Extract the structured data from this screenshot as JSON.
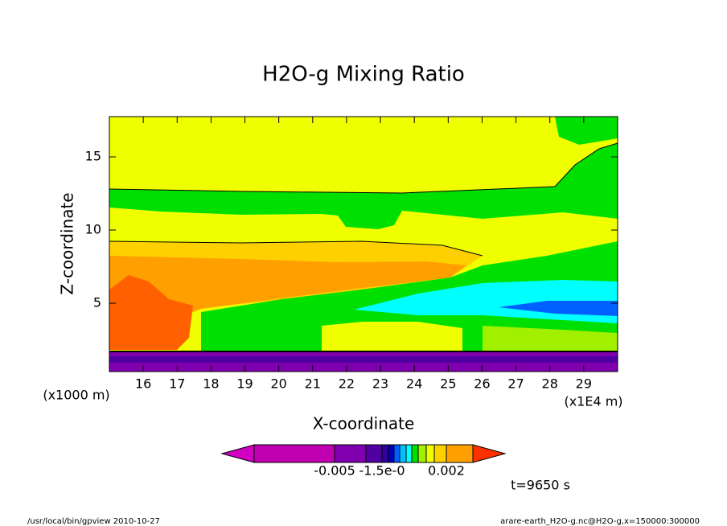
{
  "chart_data": {
    "type": "contour",
    "title": "H2O-g Mixing Ratio",
    "x_label": "X-coordinate",
    "y_label": "Z-coordinate",
    "x_unit": "(x1E4 m)",
    "y_unit": "(x1000 m)",
    "xlim": [
      15,
      30
    ],
    "xticks": [
      16,
      17,
      18,
      19,
      20,
      21,
      22,
      23,
      24,
      25,
      26,
      27,
      28,
      29
    ],
    "ylim": [
      0.33,
      17.75
    ],
    "yticks": [
      5,
      10,
      15
    ],
    "colorbar": {
      "colors": [
        "#d000c0",
        "#c000b0",
        "#8000b0",
        "#5000a0",
        "#3000a0",
        "#0000c0",
        "#0060ff",
        "#00c0ff",
        "#00ffff",
        "#00e000",
        "#a0f000",
        "#f0ff00",
        "#ffd000",
        "#ffa000",
        "#ff3000"
      ],
      "ticks": [
        -0.005,
        {
          "value": -0.0015,
          "label": "-1.5e-0"
        },
        0.002
      ]
    },
    "time_label": "t=9650 s",
    "footer_left": "/usr/local/bin/gpview  2010-10-27",
    "footer_right": "arare-earth_H2O-g.nc@H2O-g,x=150000:300000"
  }
}
